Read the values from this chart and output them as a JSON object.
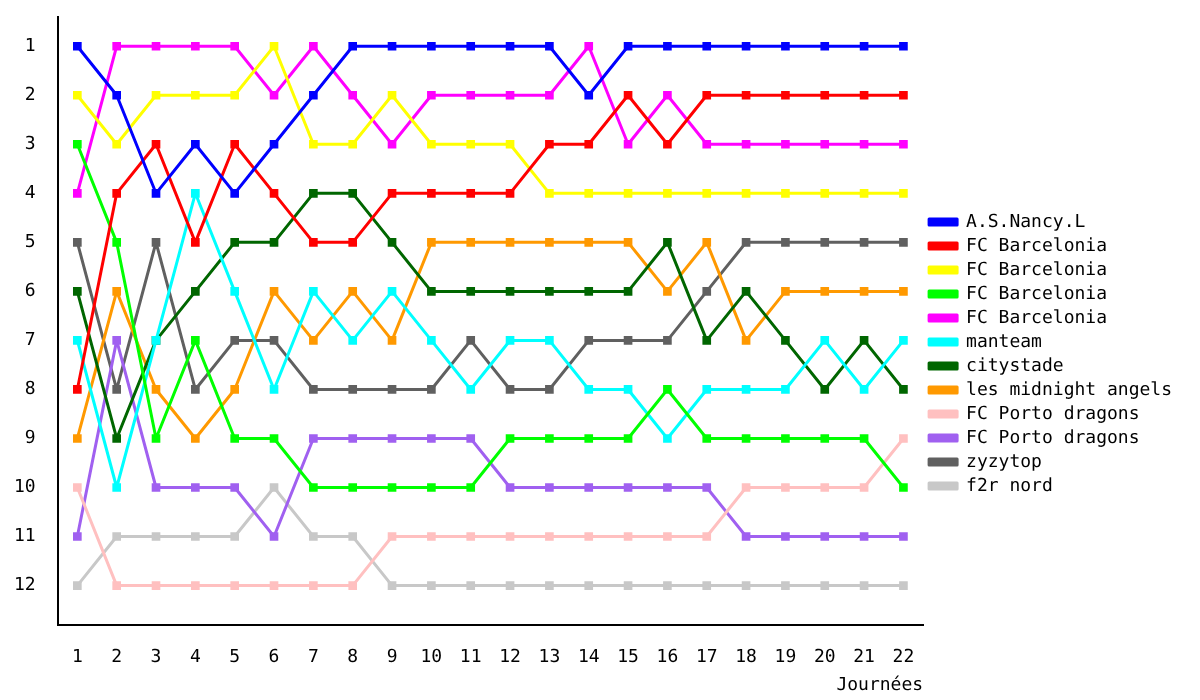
{
  "chart_data": {
    "type": "line",
    "xlabel": "Journées",
    "x": [
      1,
      2,
      3,
      4,
      5,
      6,
      7,
      8,
      9,
      10,
      11,
      12,
      13,
      14,
      15,
      16,
      17,
      18,
      19,
      20,
      21,
      22
    ],
    "xlim": [
      0.5,
      22.5
    ],
    "xticks": [
      1,
      2,
      3,
      4,
      5,
      6,
      7,
      8,
      9,
      10,
      11,
      12,
      13,
      14,
      15,
      16,
      17,
      18,
      19,
      20,
      21,
      22
    ],
    "ylim": [
      12.8,
      0.4
    ],
    "yticks": [
      1,
      2,
      3,
      4,
      5,
      6,
      7,
      8,
      9,
      10,
      11,
      12
    ],
    "grid": false,
    "legend": "right",
    "marker": "square",
    "line_style": "solid",
    "series": [
      {
        "name": "A.S.Nancy.L",
        "color": "#0000ff",
        "values": [
          1,
          2,
          4,
          3,
          4,
          3,
          2,
          1,
          1,
          1,
          1,
          1,
          1,
          2,
          1,
          1,
          1,
          1,
          1,
          1,
          1,
          1
        ]
      },
      {
        "name": "FC Barcelonia",
        "color": "#ff0000",
        "values": [
          8,
          4,
          3,
          5,
          3,
          4,
          5,
          5,
          4,
          4,
          4,
          4,
          3,
          3,
          2,
          3,
          2,
          2,
          2,
          2,
          2,
          2
        ]
      },
      {
        "name": "FC Barcelonia",
        "color": "#ffff00",
        "values": [
          2,
          3,
          2,
          2,
          2,
          1,
          3,
          3,
          2,
          3,
          3,
          3,
          4,
          4,
          4,
          4,
          4,
          4,
          4,
          4,
          4,
          4
        ]
      },
      {
        "name": "FC Barcelonia",
        "color": "#00ff00",
        "values": [
          3,
          5,
          9,
          7,
          9,
          9,
          10,
          10,
          10,
          10,
          10,
          9,
          9,
          9,
          9,
          8,
          9,
          9,
          9,
          9,
          9,
          10
        ]
      },
      {
        "name": "FC Barcelonia",
        "color": "#ff00ff",
        "values": [
          4,
          1,
          1,
          1,
          1,
          2,
          1,
          2,
          3,
          2,
          2,
          2,
          2,
          1,
          3,
          2,
          3,
          3,
          3,
          3,
          3,
          3
        ]
      },
      {
        "name": "manteam",
        "color": "#00ffff",
        "values": [
          7,
          10,
          7,
          4,
          6,
          8,
          6,
          7,
          6,
          7,
          8,
          7,
          7,
          8,
          8,
          9,
          8,
          8,
          8,
          7,
          8,
          7
        ]
      },
      {
        "name": "citystade",
        "color": "#006600",
        "values": [
          6,
          9,
          7,
          6,
          5,
          5,
          4,
          4,
          5,
          6,
          6,
          6,
          6,
          6,
          6,
          5,
          7,
          6,
          7,
          8,
          7,
          8
        ]
      },
      {
        "name": "les midnight angels",
        "color": "#ff9900",
        "values": [
          9,
          6,
          8,
          9,
          8,
          6,
          7,
          6,
          7,
          5,
          5,
          5,
          5,
          5,
          5,
          6,
          5,
          7,
          6,
          6,
          6,
          6
        ]
      },
      {
        "name": "FC Porto dragons",
        "color": "#ffc0c0",
        "values": [
          10,
          12,
          12,
          12,
          12,
          12,
          12,
          12,
          11,
          11,
          11,
          11,
          11,
          11,
          11,
          11,
          11,
          10,
          10,
          10,
          10,
          9
        ]
      },
      {
        "name": "FC Porto dragons",
        "color": "#a060f0",
        "values": [
          11,
          7,
          10,
          10,
          10,
          11,
          9,
          9,
          9,
          9,
          9,
          10,
          10,
          10,
          10,
          10,
          10,
          11,
          11,
          11,
          11,
          11
        ]
      },
      {
        "name": "zyzytop",
        "color": "#606060",
        "values": [
          5,
          8,
          5,
          8,
          7,
          7,
          8,
          8,
          8,
          8,
          7,
          8,
          8,
          7,
          7,
          7,
          6,
          5,
          5,
          5,
          5,
          5
        ]
      },
      {
        "name": "f2r nord",
        "color": "#c8c8c8",
        "values": [
          12,
          11,
          11,
          11,
          11,
          10,
          11,
          11,
          12,
          12,
          12,
          12,
          12,
          12,
          12,
          12,
          12,
          12,
          12,
          12,
          12,
          12
        ]
      }
    ]
  }
}
